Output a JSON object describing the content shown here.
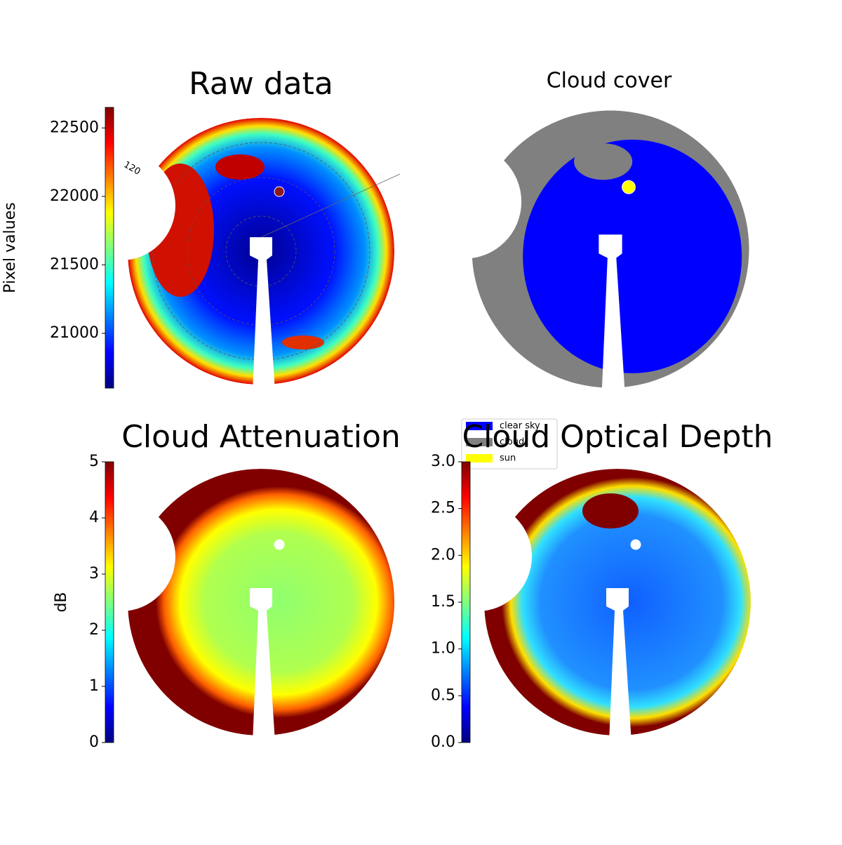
{
  "chart_data": [
    {
      "type": "heatmap",
      "title": "Raw data",
      "annotations": [
        "120"
      ],
      "colorbar": {
        "label": "Pixel values",
        "lim": [
          20600,
          22650
        ],
        "ticks": [
          21000,
          21500,
          22000,
          22500
        ]
      }
    },
    {
      "type": "heatmap",
      "title": "Cloud cover",
      "legend": [
        {
          "name": "clear sky",
          "color": "#0000ff"
        },
        {
          "name": "cloud",
          "color": "#808080"
        },
        {
          "name": "sun",
          "color": "#ffff00"
        }
      ]
    },
    {
      "type": "heatmap",
      "title": "Cloud Attenuation",
      "colorbar": {
        "label": "dB",
        "lim": [
          0,
          5
        ],
        "ticks": [
          0,
          1,
          2,
          3,
          4,
          5
        ]
      }
    },
    {
      "type": "heatmap",
      "title": "Cloud Optical Depth",
      "colorbar": {
        "lim": [
          0,
          3
        ],
        "ticks": [
          {
            "value": 0,
            "label": "0.0"
          },
          0.5,
          {
            "value": 1,
            "label": "1.0"
          },
          1.5,
          {
            "value": 2,
            "label": "2.0"
          },
          2.5,
          {
            "value": 3,
            "label": "3.0"
          }
        ]
      }
    }
  ]
}
